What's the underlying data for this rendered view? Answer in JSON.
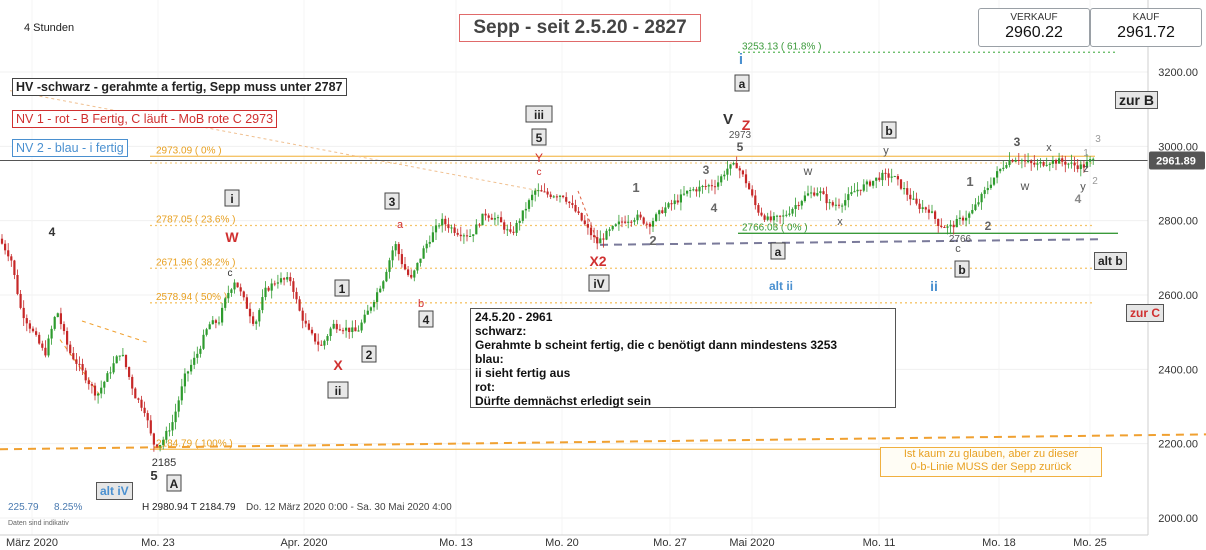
{
  "timeframe": "4 Stunden",
  "title": "Sepp - seit 2.5.20 - 2827",
  "prices": {
    "sell_label": "VERKAUF",
    "sell_value": "2960.22",
    "buy_label": "KAUF",
    "buy_value": "2961.72"
  },
  "legend": {
    "hv": "HV -schwarz - gerahmte a fertig, Sepp muss unter 2787",
    "nv1": "NV 1 - rot - B Fertig, C läuft - MoB rote C 2973",
    "nv2": "NV 2 - blau - i fertig"
  },
  "note": {
    "lines": [
      "24.5.20 - 2961",
      "schwarz:",
      "Gerahmte b scheint fertig, die c benötigt dann mindestens 3253",
      "blau:",
      "ii sieht fertig aus",
      "rot:",
      "Dürfte demnächst erledigt sein"
    ]
  },
  "orange_note": {
    "line1": "Ist kaum zu glauben, aber zu dieser",
    "line2": "0-b-Linie MUSS der Sepp zurück"
  },
  "footer": {
    "val1": "225.79",
    "val2": "8.25%",
    "ohlc": "H 2980.94  T 2184.79",
    "range": "Do. 12 März 2020 0:00 - Sa. 30 Mai 2020 4:00",
    "disclaimer": "Daten sind indikativ"
  },
  "colors": {
    "up": "#2e9b2e",
    "down": "#c62828",
    "fib": "#f0c070",
    "fib_text": "#e8a020",
    "green_level": "#3a9a3a",
    "blue": "#4a90d0",
    "red": "#d03030"
  },
  "chart_data": {
    "type": "candlestick",
    "title": "Sepp - seit 2.5.20 - 2827",
    "ylim": [
      2000,
      3250
    ],
    "y_ticks": [
      2000,
      2200,
      2400,
      2600,
      2800,
      3000,
      3200
    ],
    "y_tick_labels": [
      "2000.00",
      "2200.00",
      "2400.00",
      "2600.00",
      "2800.00",
      "3000.00",
      "3200.00"
    ],
    "x_labels": [
      "März 2020",
      "Mo. 23",
      "Apr. 2020",
      "Mo. 13",
      "Mo. 20",
      "Mo. 27",
      "Mai 2020",
      "Mo. 11",
      "Mo. 18",
      "Mo. 25"
    ],
    "last_price": 2961.89,
    "last_price_label": "2961.89",
    "fib_levels": [
      {
        "value": 3253.13,
        "label": "3253.13 ( 61.8% )",
        "style": "green-dotted"
      },
      {
        "value": 2973.09,
        "label": "2973.09 ( 0% )",
        "style": "orange"
      },
      {
        "value": 2787.05,
        "label": "2787.05 ( 23.6% )",
        "style": "orange-dotted"
      },
      {
        "value": 2671.96,
        "label": "2671.96 ( 38.2% )",
        "style": "orange-dotted"
      },
      {
        "value": 2578.94,
        "label": "2578.94 ( 50% )",
        "style": "orange-dotted"
      },
      {
        "value": 2184.79,
        "label": "2184.79 ( 100% )",
        "style": "orange"
      },
      {
        "value": 2766.03,
        "label": "2766.03 ( 0% )",
        "style": "green"
      }
    ],
    "path": [
      [
        0,
        2760
      ],
      [
        14,
        2700
      ],
      [
        24,
        2560
      ],
      [
        36,
        2500
      ],
      [
        48,
        2440
      ],
      [
        60,
        2560
      ],
      [
        72,
        2450
      ],
      [
        84,
        2400
      ],
      [
        100,
        2330
      ],
      [
        112,
        2390
      ],
      [
        124,
        2450
      ],
      [
        138,
        2330
      ],
      [
        148,
        2290
      ],
      [
        156,
        2200
      ],
      [
        164,
        2200
      ],
      [
        176,
        2260
      ],
      [
        188,
        2380
      ],
      [
        200,
        2440
      ],
      [
        212,
        2520
      ],
      [
        222,
        2530
      ],
      [
        230,
        2600
      ],
      [
        238,
        2640
      ],
      [
        248,
        2580
      ],
      [
        258,
        2520
      ],
      [
        268,
        2610
      ],
      [
        280,
        2640
      ],
      [
        294,
        2640
      ],
      [
        302,
        2560
      ],
      [
        312,
        2500
      ],
      [
        324,
        2460
      ],
      [
        336,
        2520
      ],
      [
        348,
        2510
      ],
      [
        360,
        2500
      ],
      [
        372,
        2560
      ],
      [
        386,
        2640
      ],
      [
        398,
        2740
      ],
      [
        406,
        2680
      ],
      [
        414,
        2640
      ],
      [
        428,
        2730
      ],
      [
        444,
        2800
      ],
      [
        460,
        2770
      ],
      [
        474,
        2760
      ],
      [
        488,
        2820
      ],
      [
        502,
        2800
      ],
      [
        514,
        2760
      ],
      [
        526,
        2820
      ],
      [
        538,
        2880
      ],
      [
        552,
        2870
      ],
      [
        566,
        2870
      ],
      [
        580,
        2820
      ],
      [
        590,
        2780
      ],
      [
        600,
        2740
      ],
      [
        612,
        2770
      ],
      [
        626,
        2800
      ],
      [
        640,
        2810
      ],
      [
        652,
        2790
      ],
      [
        666,
        2830
      ],
      [
        678,
        2850
      ],
      [
        692,
        2880
      ],
      [
        706,
        2890
      ],
      [
        720,
        2900
      ],
      [
        730,
        2940
      ],
      [
        740,
        2950
      ],
      [
        750,
        2900
      ],
      [
        760,
        2830
      ],
      [
        772,
        2800
      ],
      [
        786,
        2810
      ],
      [
        798,
        2840
      ],
      [
        810,
        2870
      ],
      [
        822,
        2880
      ],
      [
        834,
        2840
      ],
      [
        846,
        2850
      ],
      [
        858,
        2880
      ],
      [
        872,
        2900
      ],
      [
        884,
        2920
      ],
      [
        896,
        2920
      ],
      [
        908,
        2880
      ],
      [
        920,
        2840
      ],
      [
        932,
        2830
      ],
      [
        942,
        2790
      ],
      [
        952,
        2780
      ],
      [
        962,
        2800
      ],
      [
        974,
        2820
      ],
      [
        986,
        2870
      ],
      [
        998,
        2920
      ],
      [
        1010,
        2960
      ],
      [
        1020,
        2970
      ],
      [
        1030,
        2955
      ],
      [
        1040,
        2950
      ],
      [
        1052,
        2960
      ],
      [
        1064,
        2960
      ],
      [
        1076,
        2950
      ],
      [
        1086,
        2945
      ],
      [
        1094,
        2962
      ]
    ]
  },
  "annotations": [
    {
      "text": "4",
      "x": 52,
      "y": 236,
      "color": "#333",
      "size": 12,
      "bold": true
    },
    {
      "text": "W",
      "x": 232,
      "y": 242,
      "color": "#d03030",
      "size": 14,
      "bold": true
    },
    {
      "text": "c",
      "x": 230,
      "y": 276,
      "color": "#333",
      "size": 10
    },
    {
      "text": "X",
      "x": 338,
      "y": 370,
      "color": "#d03030",
      "size": 14,
      "bold": true
    },
    {
      "text": "a",
      "x": 400,
      "y": 228,
      "color": "#d03030",
      "size": 11
    },
    {
      "text": "b",
      "x": 421,
      "y": 307,
      "color": "#d03030",
      "size": 11
    },
    {
      "text": "Y",
      "x": 539,
      "y": 162,
      "color": "#d03030",
      "size": 12
    },
    {
      "text": "c",
      "x": 539,
      "y": 175,
      "color": "#d03030",
      "size": 10
    },
    {
      "text": "X2",
      "x": 598,
      "y": 266,
      "color": "#d03030",
      "size": 14,
      "bold": true
    },
    {
      "text": "1",
      "x": 636,
      "y": 192,
      "color": "#666",
      "size": 13,
      "bold": true
    },
    {
      "text": "2",
      "x": 653,
      "y": 245,
      "color": "#666",
      "size": 13,
      "bold": true
    },
    {
      "text": "3",
      "x": 706,
      "y": 174,
      "color": "#666",
      "size": 12,
      "bold": true
    },
    {
      "text": "4",
      "x": 714,
      "y": 212,
      "color": "#666",
      "size": 12,
      "bold": true
    },
    {
      "text": "V",
      "x": 728,
      "y": 124,
      "color": "#333",
      "size": 15,
      "bold": true
    },
    {
      "text": "Z",
      "x": 746,
      "y": 130,
      "color": "#d03030",
      "size": 14,
      "bold": true
    },
    {
      "text": "2973",
      "x": 740,
      "y": 138,
      "color": "#555",
      "size": 10
    },
    {
      "text": "5",
      "x": 740,
      "y": 151,
      "color": "#555",
      "size": 12,
      "bold": true
    },
    {
      "text": "w",
      "x": 808,
      "y": 175,
      "color": "#555",
      "size": 12
    },
    {
      "text": "x",
      "x": 840,
      "y": 225,
      "color": "#555",
      "size": 11
    },
    {
      "text": "y",
      "x": 886,
      "y": 154,
      "color": "#555",
      "size": 11
    },
    {
      "text": "1",
      "x": 970,
      "y": 186,
      "color": "#666",
      "size": 13,
      "bold": true
    },
    {
      "text": "2",
      "x": 988,
      "y": 230,
      "color": "#666",
      "size": 12,
      "bold": true
    },
    {
      "text": "2766",
      "x": 960,
      "y": 242,
      "color": "#555",
      "size": 10
    },
    {
      "text": "c",
      "x": 958,
      "y": 252,
      "color": "#555",
      "size": 11
    },
    {
      "text": "3",
      "x": 1017,
      "y": 146,
      "color": "#555",
      "size": 12,
      "bold": true
    },
    {
      "text": "x",
      "x": 1049,
      "y": 151,
      "color": "#555",
      "size": 11
    },
    {
      "text": "w",
      "x": 1025,
      "y": 190,
      "color": "#555",
      "size": 12
    },
    {
      "text": "1",
      "x": 1086,
      "y": 156,
      "color": "#999",
      "size": 10
    },
    {
      "text": "3",
      "x": 1098,
      "y": 142,
      "color": "#999",
      "size": 10
    },
    {
      "text": "z",
      "x": 1086,
      "y": 172,
      "color": "#555",
      "size": 11
    },
    {
      "text": "y",
      "x": 1083,
      "y": 190,
      "color": "#555",
      "size": 11
    },
    {
      "text": "2",
      "x": 1095,
      "y": 184,
      "color": "#999",
      "size": 10
    },
    {
      "text": "4",
      "x": 1078,
      "y": 203,
      "color": "#888",
      "size": 12,
      "bold": true
    },
    {
      "text": "i",
      "x": 741,
      "y": 64,
      "color": "#4a90d0",
      "size": 15,
      "bold": true
    },
    {
      "text": "alt ii",
      "x": 781,
      "y": 290,
      "color": "#4a90d0",
      "size": 12,
      "bold": true
    },
    {
      "text": "ii",
      "x": 934,
      "y": 291,
      "color": "#4a90d0",
      "size": 14,
      "bold": true
    },
    {
      "text": "2185",
      "x": 164,
      "y": 466,
      "color": "#333",
      "size": 11
    },
    {
      "text": "5",
      "x": 154,
      "y": 480,
      "color": "#333",
      "size": 13,
      "bold": true
    }
  ],
  "boxed_labels": [
    {
      "text": "i",
      "x": 232,
      "y": 202
    },
    {
      "text": "3",
      "x": 392,
      "y": 205
    },
    {
      "text": "1",
      "x": 342,
      "y": 292
    },
    {
      "text": "4",
      "x": 426,
      "y": 323
    },
    {
      "text": "2",
      "x": 369,
      "y": 358
    },
    {
      "text": "ii",
      "x": 338,
      "y": 394
    },
    {
      "text": "iii",
      "x": 539,
      "y": 118
    },
    {
      "text": "5",
      "x": 539,
      "y": 141
    },
    {
      "text": "iV",
      "x": 599,
      "y": 287
    },
    {
      "text": "a",
      "x": 742,
      "y": 87
    },
    {
      "text": "b",
      "x": 889,
      "y": 134
    },
    {
      "text": "a",
      "x": 778,
      "y": 255
    },
    {
      "text": "b",
      "x": 962,
      "y": 273
    },
    {
      "text": "A",
      "x": 174,
      "y": 487
    }
  ],
  "side_tags": {
    "alt_iv": "alt iV",
    "zur_b": "zur B",
    "alt_b": "alt b",
    "zur_c": "zur C"
  }
}
